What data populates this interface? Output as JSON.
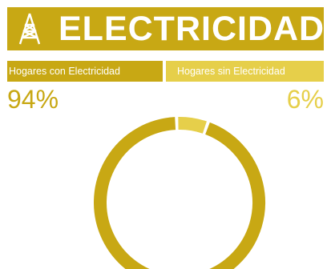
{
  "header": {
    "title": "ELECTRICIDAD",
    "icon": "transmission-tower-icon"
  },
  "labels": {
    "with": "Hogares con Electricidad",
    "without": "Hogares sin Electricidad"
  },
  "percentages": {
    "with": "94%",
    "without": "6%"
  },
  "colors": {
    "primary": "#c8a814",
    "secondary": "#e6cf4a",
    "background": "#ffffff"
  },
  "chart_data": {
    "type": "pie",
    "categories": [
      "Hogares con Electricidad",
      "Hogares sin Electricidad"
    ],
    "values": [
      94,
      6
    ],
    "colors": [
      "#c8a814",
      "#e6cf4a"
    ]
  }
}
